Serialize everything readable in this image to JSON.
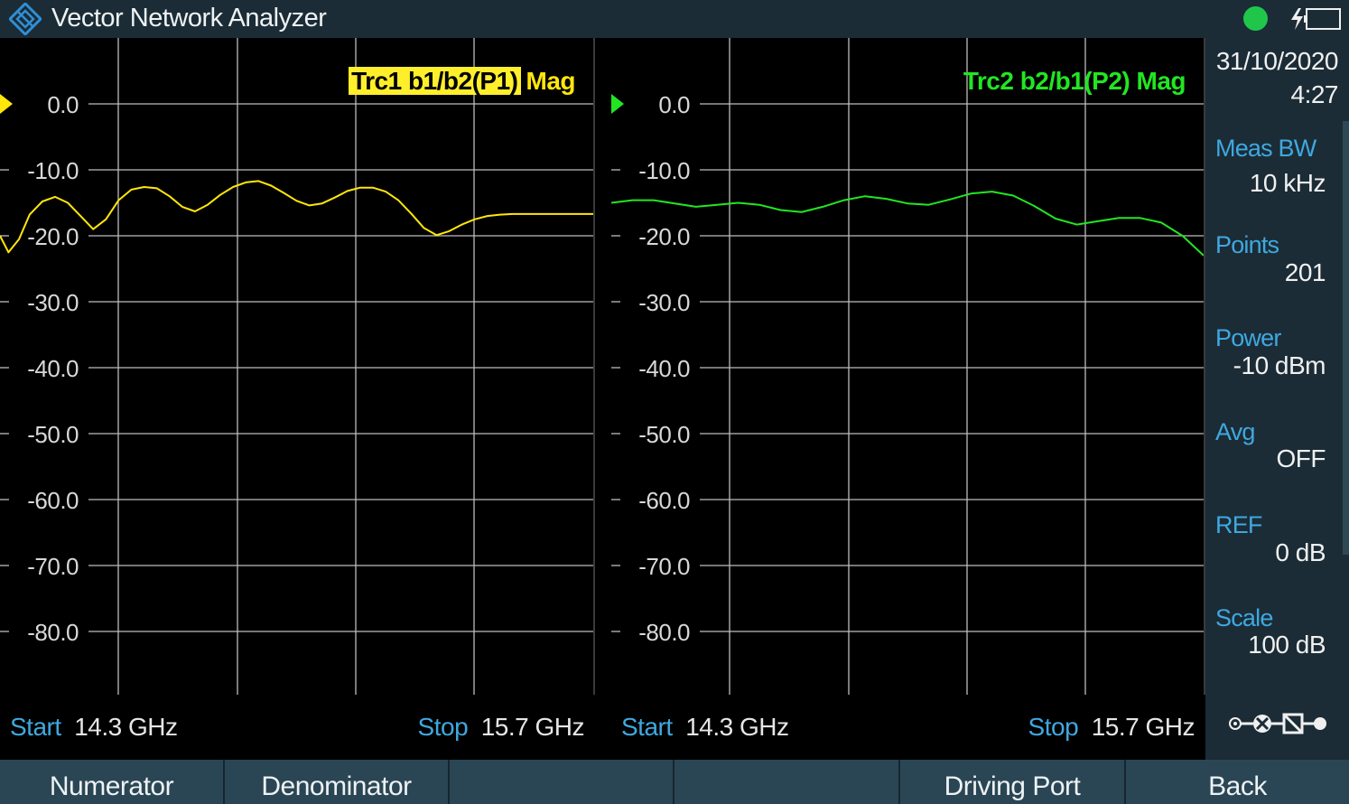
{
  "title_bar": {
    "app_title": "Vector Network Analyzer",
    "logo_icon": "rs-diamond-logo-icon",
    "status_icon": "green-status-dot-icon",
    "power_icon": "charging-battery-icon",
    "status_color": "#1fc64a"
  },
  "charts": [
    {
      "title_highlight": "Trc1  b1/b2(P1)",
      "title_rest": "Mag",
      "trace_color": "#ffe70a",
      "ref_marker_color": "#ffe70a",
      "start_label": "Start",
      "start_value": "14.3 GHz",
      "stop_label": "Stop",
      "stop_value": "15.7 GHz"
    },
    {
      "title": "Trc2  b2/b1(P2)  Mag",
      "trace_color": "#22e622",
      "ref_marker_color": "#22e622",
      "start_label": "Start",
      "start_value": "14.3 GHz",
      "stop_label": "Stop",
      "stop_value": "15.7 GHz"
    }
  ],
  "chart_data": [
    {
      "type": "line",
      "title": "Trc1  b1/b2(P1)  Mag",
      "xlabel": "",
      "ylabel": "",
      "x_range_ghz": [
        14.3,
        15.7
      ],
      "ylim": [
        -90,
        10
      ],
      "y_ticks": [
        "0.0",
        "-10.0",
        "-20.0",
        "-30.0",
        "-40.0",
        "-50.0",
        "-60.0",
        "-70.0",
        "-80.0"
      ],
      "grid": true,
      "x": [
        14.3,
        14.32,
        14.345,
        14.37,
        14.4,
        14.43,
        14.46,
        14.49,
        14.52,
        14.55,
        14.58,
        14.61,
        14.64,
        14.67,
        14.7,
        14.73,
        14.76,
        14.79,
        14.82,
        14.85,
        14.88,
        14.91,
        14.94,
        14.97,
        15.0,
        15.03,
        15.06,
        15.09,
        15.12,
        15.15,
        15.18,
        15.21,
        15.24,
        15.27,
        15.3,
        15.33,
        15.36,
        15.39,
        15.42,
        15.45,
        15.48,
        15.51,
        15.54,
        15.57,
        15.6,
        15.63,
        15.66,
        15.7
      ],
      "series": [
        {
          "values": [
            -20.0,
            -22.5,
            -20.5,
            -16.8,
            -14.8,
            -14.1,
            -15.0,
            -17.0,
            -19.0,
            -17.5,
            -14.6,
            -13.0,
            -12.6,
            -12.8,
            -14.0,
            -15.6,
            -16.3,
            -15.3,
            -13.8,
            -12.6,
            -11.9,
            -11.7,
            -12.4,
            -13.5,
            -14.7,
            -15.4,
            -15.1,
            -14.2,
            -13.2,
            -12.7,
            -12.7,
            -13.3,
            -14.6,
            -16.6,
            -18.8,
            -19.9,
            -19.3,
            -18.3,
            -17.5,
            -17.0,
            -16.8,
            -16.7,
            -16.7,
            -16.7,
            -16.7,
            -16.7,
            -16.7,
            -16.7
          ]
        }
      ]
    },
    {
      "type": "line",
      "title": "Trc2  b2/b1(P2)  Mag",
      "xlabel": "",
      "ylabel": "",
      "x_range_ghz": [
        14.3,
        15.7
      ],
      "ylim": [
        -90,
        10
      ],
      "y_ticks": [
        "0.0",
        "-10.0",
        "-20.0",
        "-30.0",
        "-40.0",
        "-50.0",
        "-60.0",
        "-70.0",
        "-80.0"
      ],
      "grid": true,
      "x": [
        14.3,
        14.35,
        14.4,
        14.45,
        14.5,
        14.55,
        14.6,
        14.65,
        14.7,
        14.75,
        14.8,
        14.85,
        14.9,
        14.95,
        15.0,
        15.05,
        15.1,
        15.15,
        15.2,
        15.25,
        15.3,
        15.35,
        15.4,
        15.45,
        15.5,
        15.55,
        15.6,
        15.65,
        15.7
      ],
      "series": [
        {
          "values": [
            -15.0,
            -14.6,
            -14.6,
            -15.1,
            -15.6,
            -15.3,
            -15.0,
            -15.3,
            -16.1,
            -16.4,
            -15.6,
            -14.6,
            -14.0,
            -14.4,
            -15.1,
            -15.3,
            -14.5,
            -13.6,
            -13.3,
            -13.9,
            -15.5,
            -17.4,
            -18.3,
            -17.8,
            -17.3,
            -17.3,
            -18.0,
            -20.0,
            -23.0
          ]
        }
      ]
    }
  ],
  "sidebar": {
    "date": "31/10/2020",
    "time": "4:27",
    "items": [
      {
        "label": "Meas BW",
        "value": "10 kHz"
      },
      {
        "label": "Points",
        "value": "201"
      },
      {
        "label": "Power",
        "value": "-10 dBm"
      },
      {
        "label": "Avg",
        "value": "OFF"
      },
      {
        "label": "REF",
        "value": "0 dB"
      },
      {
        "label": "Scale",
        "value": "100 dB"
      }
    ],
    "port_icon": "port-connection-icon"
  },
  "softkeys": [
    "Numerator",
    "Denominator",
    "",
    "",
    "Driving Port",
    "Back"
  ]
}
